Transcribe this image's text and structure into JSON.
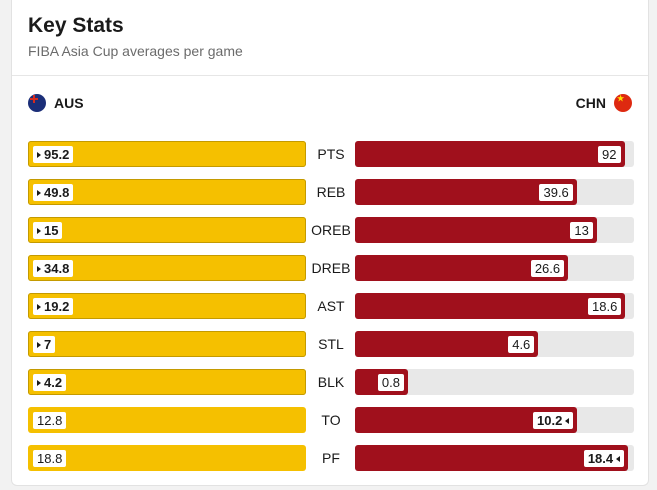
{
  "header": {
    "title": "Key Stats",
    "subtitle": "FIBA Asia Cup averages per game"
  },
  "teams": {
    "left": {
      "name": "AUS",
      "flag_icon": "australia-flag-icon",
      "color": "#f5c000"
    },
    "right": {
      "name": "CHN",
      "flag_icon": "china-flag-icon",
      "color": "#a0101c"
    }
  },
  "stats": [
    {
      "label": "PTS",
      "left": "95.2",
      "right": "92",
      "leader": "left",
      "right_fraction": 0.966
    },
    {
      "label": "REB",
      "left": "49.8",
      "right": "39.6",
      "leader": "left",
      "right_fraction": 0.795
    },
    {
      "label": "OREB",
      "left": "15",
      "right": "13",
      "leader": "left",
      "right_fraction": 0.867
    },
    {
      "label": "DREB",
      "left": "34.8",
      "right": "26.6",
      "leader": "left",
      "right_fraction": 0.764
    },
    {
      "label": "AST",
      "left": "19.2",
      "right": "18.6",
      "leader": "left",
      "right_fraction": 0.969
    },
    {
      "label": "STL",
      "left": "7",
      "right": "4.6",
      "leader": "left",
      "right_fraction": 0.657
    },
    {
      "label": "BLK",
      "left": "4.2",
      "right": "0.8",
      "leader": "left",
      "right_fraction": 0.19
    },
    {
      "label": "TO",
      "left": "12.8",
      "right": "10.2",
      "leader": "right",
      "right_fraction": 0.797
    },
    {
      "label": "PF",
      "left": "18.8",
      "right": "18.4",
      "leader": "right",
      "right_fraction": 0.979
    }
  ]
}
